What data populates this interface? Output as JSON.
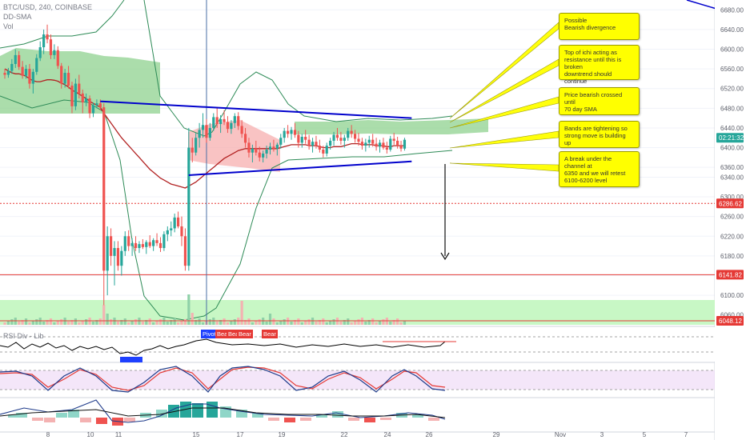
{
  "header": {
    "symbol": "BTC/USD, 240, COINBASE",
    "indicators": [
      "DD-SMA",
      "Vol"
    ],
    "rsi_label": "RSI Div - Lib"
  },
  "notes": [
    "Possible\nBearish divergence",
    "Top of ichi acting as\nresistance until this is broken\ndowntrend should continue",
    "Price bearish crossed until\n70 day SMA",
    "Bands are tightening so\nstrong move is building up",
    "A break under the channel at\n6350 and we will retest\n6100-6200 level"
  ],
  "signals": [
    "Pivot",
    "Bear",
    "Bear",
    "Bear",
    "Bear"
  ],
  "colors": {
    "up": "#26a69a",
    "down": "#ef5350",
    "sma": "#b22222",
    "bands": "#2e8b57",
    "channel": "#0000cc",
    "level": "#e53935",
    "note": "#ffff00",
    "rsi": "#000000",
    "stoch_k": "#1e3a8a",
    "stoch_d": "#e53935"
  },
  "chart_data": {
    "type": "candlestick",
    "y_axis": {
      "ylim": [
        6040,
        6700
      ],
      "ticks": [
        "6680.00",
        "6640.00",
        "6600.00",
        "6560.00",
        "6520.00",
        "6480.00",
        "6440.00",
        "6400.00",
        "6360.00",
        "6340.00",
        "6300.00",
        "6260.00",
        "6220.00",
        "6180.00",
        "6140.00",
        "6100.00",
        "6060.00"
      ]
    },
    "x_axis": {
      "ticks": [
        "8",
        "10",
        "11",
        "15",
        "17",
        "19",
        "22",
        "24",
        "26",
        "29",
        "Nov",
        "3",
        "5",
        "7"
      ]
    },
    "price_labels": [
      {
        "label": "02:21:32",
        "value": 6420,
        "color": "#26a69a"
      },
      {
        "label": "6286.62",
        "value": 6286.62,
        "color": "#e53935"
      },
      {
        "label": "6141.82",
        "value": 6141.82,
        "color": "#e53935"
      },
      {
        "label": "6048.12",
        "value": 6048.12,
        "color": "#e53935"
      }
    ],
    "horizontal_levels": [
      6286.62,
      6141.82,
      6048.12
    ],
    "channel": {
      "upper": [
        {
          "bar": 27,
          "price": 6494
        },
        {
          "bar": 115,
          "price": 6460
        }
      ],
      "lower": [
        {
          "bar": 52,
          "price": 6344
        },
        {
          "bar": 115,
          "price": 6372
        }
      ]
    },
    "candles": [
      [
        6552,
        6560,
        6540,
        6548
      ],
      [
        6548,
        6562,
        6542,
        6556
      ],
      [
        6556,
        6580,
        6550,
        6570
      ],
      [
        6570,
        6600,
        6562,
        6588
      ],
      [
        6588,
        6596,
        6558,
        6564
      ],
      [
        6564,
        6576,
        6540,
        6546
      ],
      [
        6546,
        6568,
        6540,
        6560
      ],
      [
        6560,
        6570,
        6520,
        6530
      ],
      [
        6530,
        6560,
        6510,
        6554
      ],
      [
        6554,
        6590,
        6548,
        6582
      ],
      [
        6582,
        6616,
        6576,
        6604
      ],
      [
        6604,
        6640,
        6590,
        6630
      ],
      [
        6630,
        6650,
        6612,
        6620
      ],
      [
        6620,
        6630,
        6580,
        6588
      ],
      [
        6588,
        6610,
        6580,
        6598
      ],
      [
        6598,
        6606,
        6560,
        6566
      ],
      [
        6566,
        6572,
        6520,
        6530
      ],
      [
        6530,
        6560,
        6522,
        6552
      ],
      [
        6552,
        6566,
        6520,
        6526
      ],
      [
        6526,
        6534,
        6470,
        6484
      ],
      [
        6484,
        6540,
        6476,
        6530
      ],
      [
        6530,
        6548,
        6500,
        6510
      ],
      [
        6510,
        6518,
        6470,
        6492
      ],
      [
        6492,
        6510,
        6484,
        6500
      ],
      [
        6500,
        6506,
        6460,
        6470
      ],
      [
        6470,
        6492,
        6462,
        6486
      ],
      [
        6486,
        6498,
        6480,
        6490
      ],
      [
        6490,
        6498,
        6476,
        6482
      ],
      [
        6482,
        6490,
        6080,
        6150
      ],
      [
        6150,
        6240,
        6100,
        6220
      ],
      [
        6220,
        6236,
        6160,
        6180
      ],
      [
        6180,
        6210,
        6120,
        6196
      ],
      [
        6196,
        6210,
        6150,
        6160
      ],
      [
        6160,
        6200,
        6140,
        6190
      ],
      [
        6190,
        6230,
        6180,
        6220
      ],
      [
        6220,
        6232,
        6190,
        6200
      ],
      [
        6200,
        6216,
        6180,
        6206
      ],
      [
        6206,
        6220,
        6190,
        6196
      ],
      [
        6196,
        6210,
        6186,
        6204
      ],
      [
        6204,
        6214,
        6194,
        6198
      ],
      [
        6198,
        6212,
        6184,
        6208
      ],
      [
        6208,
        6222,
        6196,
        6200
      ],
      [
        6200,
        6216,
        6190,
        6212
      ],
      [
        6212,
        6226,
        6200,
        6206
      ],
      [
        6206,
        6218,
        6188,
        6196
      ],
      [
        6196,
        6230,
        6190,
        6224
      ],
      [
        6224,
        6240,
        6210,
        6232
      ],
      [
        6232,
        6250,
        6220,
        6236
      ],
      [
        6236,
        6266,
        6228,
        6258
      ],
      [
        6258,
        6270,
        6236,
        6240
      ],
      [
        6240,
        6260,
        6200,
        6220
      ],
      [
        6220,
        6236,
        6150,
        6160
      ],
      [
        6160,
        6440,
        6150,
        6400
      ],
      [
        6400,
        6420,
        6370,
        6390
      ],
      [
        6390,
        6430,
        6384,
        6420
      ],
      [
        6420,
        6450,
        6400,
        6436
      ],
      [
        6436,
        6470,
        6420,
        6446
      ],
      [
        6446,
        6458,
        6410,
        6420
      ],
      [
        6420,
        6450,
        6414,
        6440
      ],
      [
        6440,
        6470,
        6434,
        6462
      ],
      [
        6462,
        6480,
        6440,
        6448
      ],
      [
        6448,
        6466,
        6430,
        6458
      ],
      [
        6458,
        6476,
        6446,
        6452
      ],
      [
        6452,
        6464,
        6430,
        6438
      ],
      [
        6438,
        6456,
        6428,
        6450
      ],
      [
        6450,
        6470,
        6440,
        6464
      ],
      [
        6464,
        6472,
        6436,
        6444
      ],
      [
        6444,
        6456,
        6420,
        6428
      ],
      [
        6428,
        6440,
        6400,
        6410
      ],
      [
        6410,
        6420,
        6380,
        6390
      ],
      [
        6390,
        6406,
        6370,
        6398
      ],
      [
        6398,
        6414,
        6384,
        6390
      ],
      [
        6390,
        6402,
        6372,
        6380
      ],
      [
        6380,
        6394,
        6370,
        6388
      ],
      [
        6388,
        6404,
        6378,
        6396
      ],
      [
        6396,
        6410,
        6386,
        6402
      ],
      [
        6402,
        6416,
        6392,
        6398
      ],
      [
        6398,
        6410,
        6384,
        6406
      ],
      [
        6406,
        6428,
        6398,
        6420
      ],
      [
        6420,
        6440,
        6410,
        6434
      ],
      [
        6434,
        6446,
        6420,
        6428
      ],
      [
        6428,
        6442,
        6416,
        6436
      ],
      [
        6436,
        6450,
        6420,
        6426
      ],
      [
        6426,
        6434,
        6400,
        6410
      ],
      [
        6410,
        6428,
        6400,
        6422
      ],
      [
        6422,
        6436,
        6408,
        6416
      ],
      [
        6416,
        6426,
        6396,
        6404
      ],
      [
        6404,
        6420,
        6390,
        6412
      ],
      [
        6412,
        6424,
        6398,
        6404
      ],
      [
        6404,
        6416,
        6390,
        6396
      ],
      [
        6396,
        6404,
        6380,
        6388
      ],
      [
        6388,
        6410,
        6382,
        6404
      ],
      [
        6404,
        6420,
        6396,
        6414
      ],
      [
        6414,
        6432,
        6404,
        6426
      ],
      [
        6426,
        6440,
        6414,
        6420
      ],
      [
        6420,
        6432,
        6406,
        6414
      ],
      [
        6414,
        6426,
        6400,
        6420
      ],
      [
        6420,
        6440,
        6414,
        6434
      ],
      [
        6434,
        6446,
        6420,
        6428
      ],
      [
        6428,
        6436,
        6410,
        6418
      ],
      [
        6418,
        6430,
        6404,
        6412
      ],
      [
        6412,
        6420,
        6396,
        6404
      ],
      [
        6404,
        6418,
        6392,
        6410
      ],
      [
        6410,
        6424,
        6400,
        6416
      ],
      [
        6416,
        6428,
        6402,
        6408
      ],
      [
        6408,
        6420,
        6394,
        6402
      ],
      [
        6402,
        6416,
        6390,
        6410
      ],
      [
        6410,
        6420,
        6396,
        6400
      ],
      [
        6400,
        6412,
        6388,
        6396
      ],
      [
        6396,
        6424,
        6392,
        6418
      ],
      [
        6418,
        6430,
        6406,
        6414
      ],
      [
        6414,
        6422,
        6398,
        6404
      ],
      [
        6404,
        6414,
        6392,
        6398
      ],
      [
        6398,
        6420,
        6394,
        6416
      ]
    ],
    "sma": [
      6560,
      6556,
      6552,
      6550,
      6550,
      6548,
      6545,
      6540,
      6536,
      6534,
      6534,
      6536,
      6538,
      6538,
      6537,
      6535,
      6531,
      6528,
      6523,
      6517,
      6513,
      6509,
      6504,
      6500,
      6494,
      6490,
      6486,
      6482,
      6470,
      6460,
      6450,
      6440,
      6430,
      6420,
      6412,
      6404,
      6396,
      6388,
      6380,
      6372,
      6364,
      6356,
      6350,
      6344,
      6338,
      6334,
      6330,
      6326,
      6324,
      6322,
      6320,
      6318,
      6322,
      6326,
      6330,
      6336,
      6342,
      6348,
      6354,
      6360,
      6366,
      6372,
      6378,
      6382,
      6386,
      6390,
      6394,
      6396,
      6398,
      6398,
      6398,
      6398,
      6398,
      6398,
      6398,
      6398,
      6398,
      6398,
      6400,
      6402,
      6404,
      6406,
      6406,
      6406,
      6406,
      6406,
      6404,
      6404,
      6404,
      6402,
      6400,
      6400,
      6400,
      6402,
      6402,
      6402,
      6404,
      6406,
      6408,
      6408,
      6408,
      6406,
      6406,
      6406,
      6406,
      6404,
      6404,
      6404,
      6402,
      6402,
      6404,
      6404,
      6404,
      6404
    ]
  }
}
